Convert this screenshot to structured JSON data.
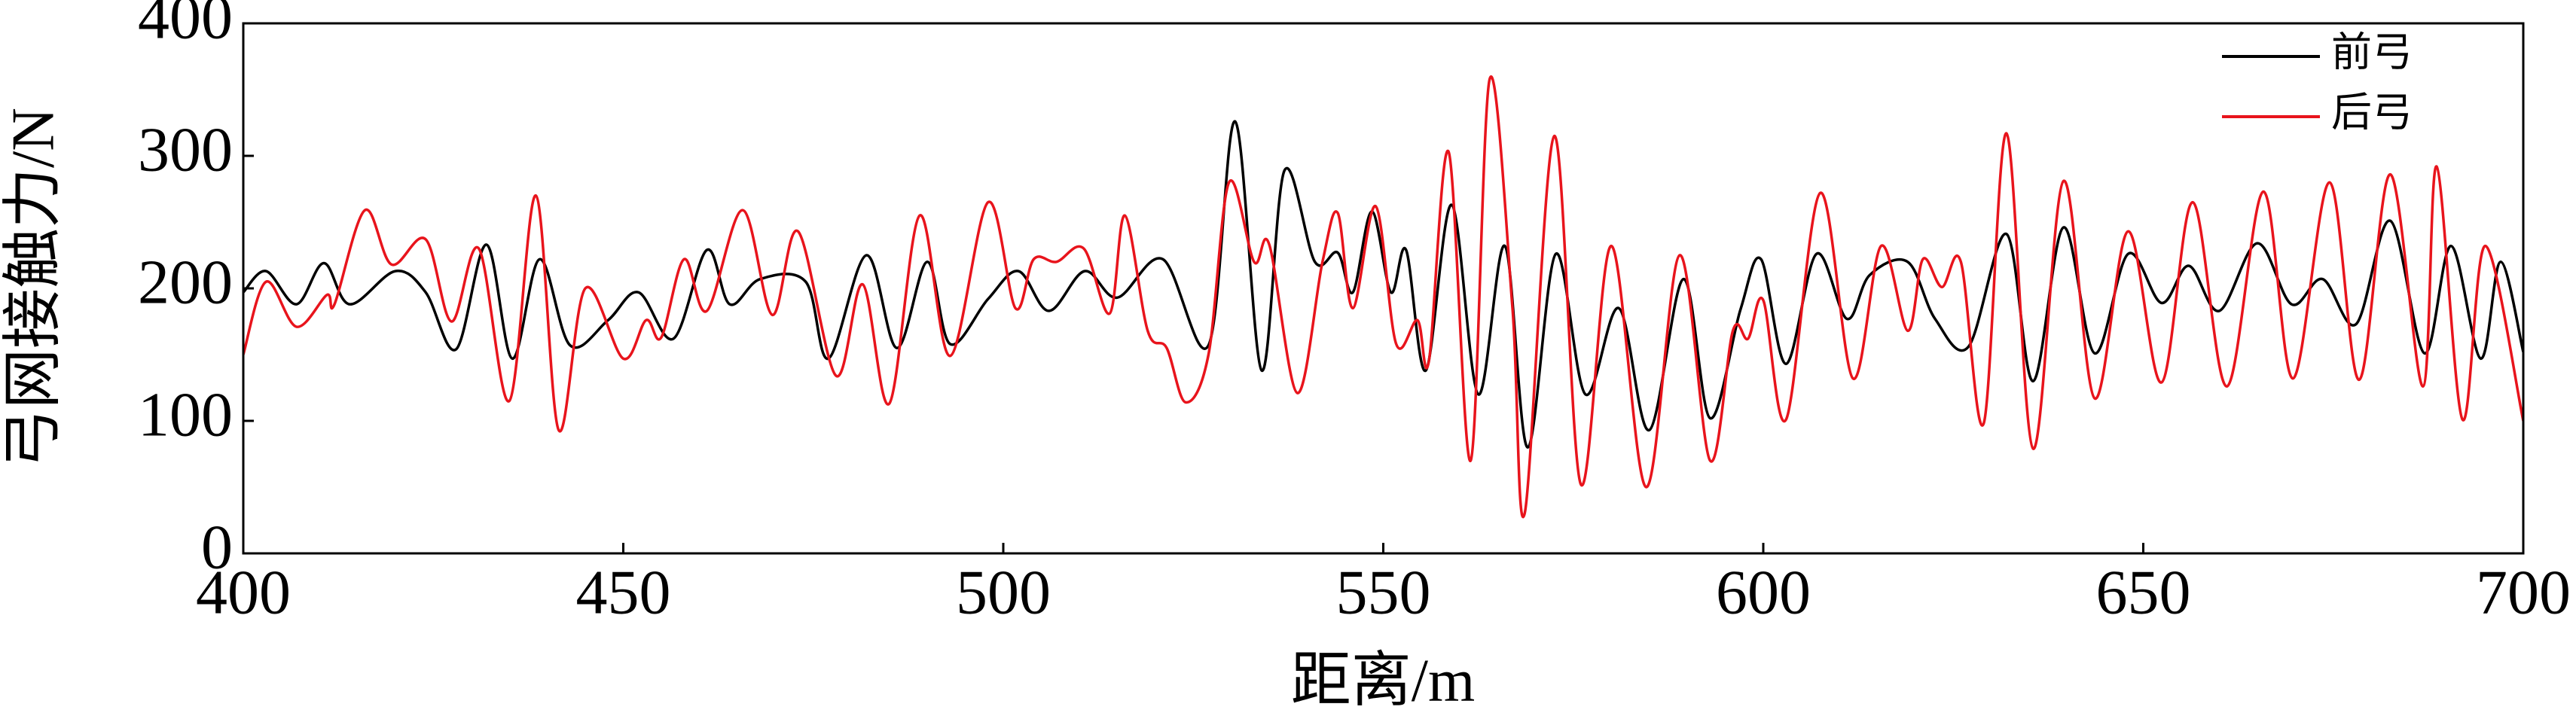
{
  "chart_data": {
    "type": "line",
    "x_label": "距离/m",
    "y_label": "弓网接触力/N",
    "xlim": [
      400,
      700
    ],
    "xticks": [
      400,
      450,
      500,
      550,
      600,
      650,
      700
    ],
    "ylim": [
      0,
      400
    ],
    "yticks": [
      0,
      100,
      200,
      300,
      400
    ],
    "legend": "upper right",
    "series": [
      {
        "name": "前弓",
        "color": "#000000",
        "x": [
          400,
          403,
          407,
          410.6,
          414,
          420,
          424,
          428,
          432,
          435.4,
          439,
          443,
          448,
          452,
          456.6,
          461,
          464,
          468,
          474,
          477,
          482,
          486,
          490,
          493,
          498,
          502,
          506,
          510.7,
          515,
          521,
          527,
          530.5,
          534,
          537,
          541,
          544,
          546,
          548.5,
          551,
          553,
          555.6,
          559,
          562.5,
          566,
          569,
          572.7,
          576.6,
          581,
          585,
          589.5,
          593,
          597,
          599.7,
          603,
          607,
          611,
          614,
          619,
          622.6,
          627,
          632,
          635.5,
          639.5,
          643.6,
          648,
          652.4,
          656,
          660,
          665,
          669.5,
          673.6,
          678,
          682.5,
          687,
          690.5,
          694.4,
          697,
          700
        ],
        "values": [
          197,
          213,
          188,
          219,
          188,
          213,
          197,
          154,
          233,
          147,
          222,
          157,
          176,
          197,
          162,
          229,
          188,
          207,
          205,
          147,
          225,
          155,
          220,
          158,
          192,
          213,
          183,
          213,
          193,
          222,
          157,
          326,
          138,
          289,
          220,
          227,
          197,
          258,
          197,
          229,
          138,
          263,
          120,
          232,
          80,
          226,
          120,
          185,
          93,
          207,
          102,
          184,
          222,
          143,
          226,
          177,
          210,
          220,
          177,
          156,
          241,
          130,
          246,
          151,
          226,
          189,
          217,
          183,
          234,
          188,
          207,
          173,
          251,
          151,
          232,
          147,
          220,
          152
        ]
      },
      {
        "name": "后弓",
        "color": "#e8141c",
        "x": [
          400,
          403,
          407,
          411,
          412,
          416,
          419.5,
          424,
          427.4,
          431,
          435,
          438.5,
          441.5,
          445,
          450,
          453,
          455,
          458,
          461,
          465.7,
          469.6,
          473,
          478,
          481.5,
          485,
          489,
          493,
          498,
          501.6,
          504,
          507,
          510.6,
          514,
          516,
          519,
          521.5,
          524,
          527,
          529.7,
          533,
          535,
          538.7,
          542,
          544,
          546,
          549,
          551.7,
          554.5,
          556,
          558.6,
          561.5,
          564,
          567,
          568.6,
          572.5,
          576,
          580,
          584.6,
          589,
          593,
          596,
          598,
          600,
          603,
          607.5,
          611.8,
          615.5,
          619,
          621,
          623.5,
          626,
          629,
          632,
          635.5,
          639.5,
          643.6,
          648,
          652.4,
          656.5,
          661,
          665.8,
          669.7,
          674.5,
          678.4,
          682.5,
          686.8,
          688.6,
          692,
          695,
          700
        ],
        "values": [
          150,
          205,
          171,
          195,
          188,
          259,
          218,
          237,
          175,
          230,
          115,
          270,
          93,
          200,
          147,
          176,
          163,
          222,
          183,
          259,
          180,
          243,
          134,
          203,
          113,
          255,
          149,
          265,
          185,
          222,
          220,
          230,
          181,
          255,
          168,
          155,
          114,
          150,
          280,
          220,
          233,
          121,
          220,
          257,
          185,
          262,
          158,
          176,
          145,
          303,
          70,
          358,
          185,
          30,
          315,
          52,
          232,
          50,
          225,
          70,
          168,
          162,
          191,
          101,
          272,
          132,
          232,
          168,
          222,
          201,
          220,
          98,
          317,
          79,
          281,
          117,
          243,
          129,
          265,
          126,
          273,
          132,
          280,
          131,
          286,
          126,
          292,
          101,
          232,
          100
        ]
      }
    ]
  }
}
